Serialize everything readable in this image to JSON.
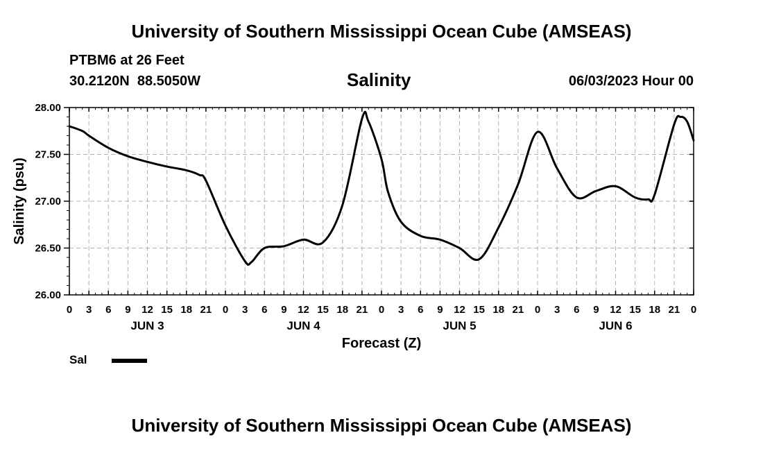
{
  "page": {
    "title_top": "University of Southern Mississippi Ocean Cube (AMSEAS)",
    "title_bottom": "University of Southern Mississippi Ocean Cube (AMSEAS)",
    "station": "PTBM6 at 26 Feet",
    "coords": "30.2120N  88.5050W",
    "datetime": "06/03/2023 Hour 00"
  },
  "chart_data": {
    "type": "line",
    "title": "Salinity",
    "xlabel": "Forecast (Z)",
    "ylabel": "Salinity (psu)",
    "ylim": [
      26.0,
      28.0
    ],
    "xlim_hours": [
      0,
      96
    ],
    "grid": true,
    "y_ticks": [
      "26.00",
      "26.50",
      "27.00",
      "27.50",
      "28.00"
    ],
    "x_tick_labels": [
      "0",
      "3",
      "6",
      "9",
      "12",
      "15",
      "18",
      "21",
      "0",
      "3",
      "6",
      "9",
      "12",
      "15",
      "18",
      "21",
      "0",
      "3",
      "6",
      "9",
      "12",
      "15",
      "18",
      "21",
      "0",
      "3",
      "6",
      "9",
      "12",
      "15",
      "18",
      "21",
      "0"
    ],
    "day_labels": [
      "JUN 3",
      "JUN 4",
      "JUN 5",
      "JUN 6"
    ],
    "legend": [
      {
        "label": "Sal",
        "color": "#000000"
      }
    ],
    "series": [
      {
        "name": "Sal",
        "hours": [
          0,
          2,
          3,
          6,
          9,
          12,
          15,
          18,
          20,
          21,
          24,
          27,
          28,
          30,
          33,
          36,
          39,
          42,
          45,
          46,
          48,
          49,
          51,
          54,
          57,
          60,
          63,
          66,
          69,
          72,
          75,
          78,
          81,
          84,
          87,
          89,
          90,
          93,
          94,
          95,
          96
        ],
        "values": [
          27.8,
          27.75,
          27.7,
          27.57,
          27.48,
          27.42,
          27.37,
          27.33,
          27.28,
          27.22,
          26.74,
          26.36,
          26.35,
          26.5,
          26.52,
          26.59,
          26.56,
          26.96,
          27.88,
          27.85,
          27.45,
          27.1,
          26.78,
          26.63,
          26.59,
          26.5,
          26.38,
          26.72,
          27.18,
          27.74,
          27.35,
          27.04,
          27.11,
          27.16,
          27.04,
          27.02,
          27.07,
          27.82,
          27.9,
          27.85,
          27.65
        ]
      }
    ]
  }
}
